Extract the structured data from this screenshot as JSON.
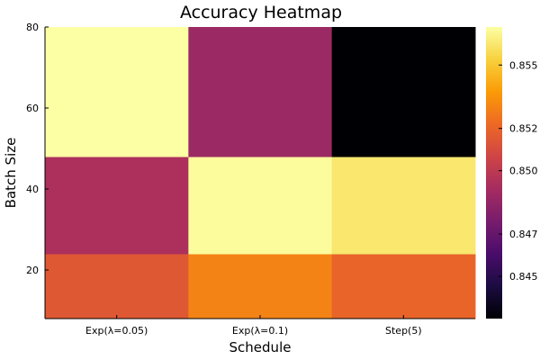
{
  "chart_data": {
    "type": "heatmap",
    "title": "Accuracy Heatmap",
    "xlabel": "Schedule",
    "ylabel": "Batch Size",
    "x_categories": [
      "Exp(λ=0.05)",
      "Exp(λ=0.1)",
      "Step(5)"
    ],
    "y_rows": [
      {
        "range": [
          8,
          24
        ],
        "values": [
          0.8515,
          0.853,
          0.852
        ]
      },
      {
        "range": [
          24,
          48
        ],
        "values": [
          0.8494,
          0.8567,
          0.856
        ]
      },
      {
        "range": [
          48,
          80
        ],
        "values": [
          0.8568,
          0.8488,
          0.843
        ]
      }
    ],
    "ylim": [
      8,
      80
    ],
    "y_ticks": [
      20,
      40,
      60,
      80
    ],
    "colorbar": {
      "range": [
        0.843,
        0.8568
      ],
      "ticks": [
        0.845,
        0.847,
        0.85,
        0.852,
        0.855
      ],
      "tick_labels": [
        "0.845",
        "0.847",
        "0.850",
        "0.852",
        "0.855"
      ],
      "colormap": "inferno",
      "stops": [
        "#000004",
        "#1b0c41",
        "#4a0c6b",
        "#781c6d",
        "#a52c60",
        "#cf4446",
        "#ed6925",
        "#fb9b06",
        "#f7d13d",
        "#fcffa4"
      ]
    }
  }
}
